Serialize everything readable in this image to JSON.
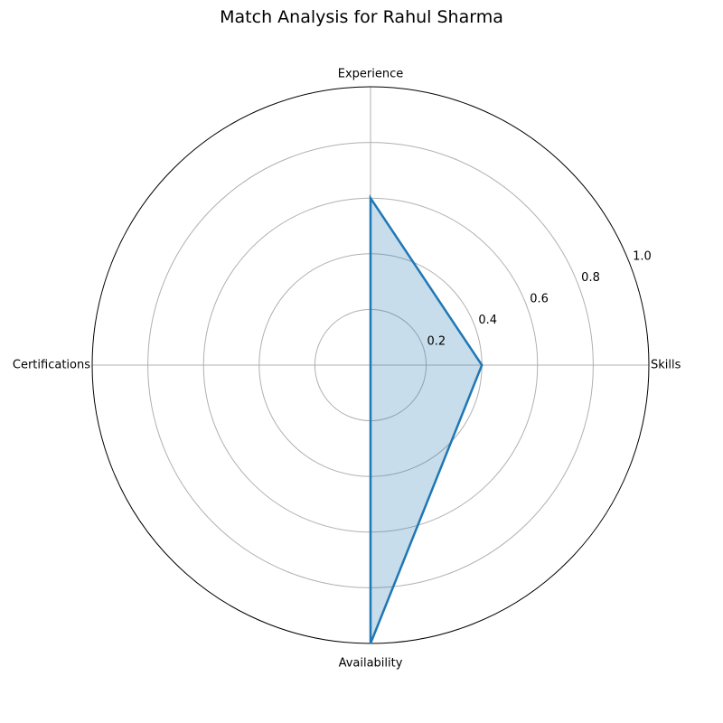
{
  "chart_data": {
    "type": "radar",
    "title": "Match Analysis for Rahul Sharma",
    "categories": [
      "Skills",
      "Experience",
      "Certifications",
      "Availability"
    ],
    "series": [
      {
        "values": [
          0.4,
          0.6,
          0.0,
          1.0
        ],
        "color": "#1f77b4",
        "fill_color": "#1f77b4",
        "fill_opacity": 0.25
      }
    ],
    "rlim": [
      0,
      1.0
    ],
    "rticks": [
      "0.2",
      "0.4",
      "0.6",
      "0.8",
      "1.0"
    ],
    "grid": true
  }
}
